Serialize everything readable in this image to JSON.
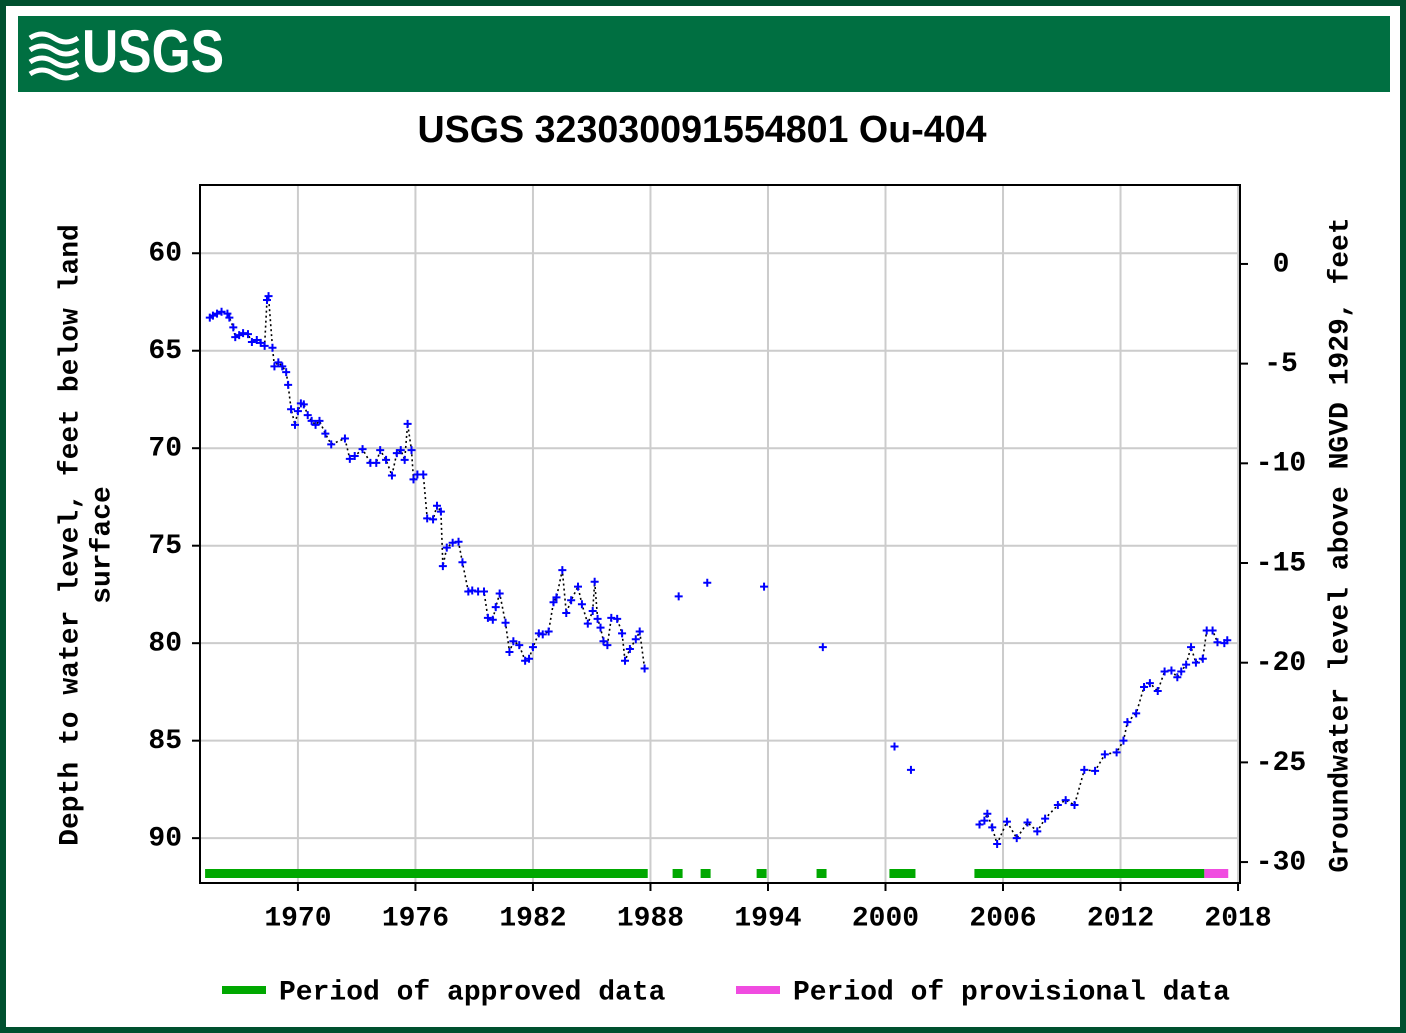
{
  "header": {
    "logo_text": "USGS"
  },
  "chart_data": {
    "type": "line",
    "title": "USGS 323030091554801 Ou-404",
    "ylabel_lines": [
      "Depth to water level, feet below land",
      "surface"
    ],
    "y2label": "Groundwater level above NGVD 1929, feet",
    "xlim": [
      1965.0,
      2018.1
    ],
    "xticks": [
      1970,
      1976,
      1982,
      1988,
      1994,
      2000,
      2006,
      2012,
      2018
    ],
    "ylim": [
      92.3,
      56.5
    ],
    "yticks": [
      60,
      65,
      70,
      75,
      80,
      85,
      90
    ],
    "y2lim": [
      -31.05,
      3.96
    ],
    "y2ticks": [
      0,
      -5,
      -10,
      -15,
      -20,
      -25,
      -30
    ],
    "grid": true,
    "marker_color": "#0000ff",
    "line_color": "#000000",
    "x": [
      1965.5,
      1965.66,
      1965.87,
      1966.1,
      1966.4,
      1966.5,
      1966.7,
      1966.8,
      1967.0,
      1967.2,
      1967.45,
      1967.65,
      1967.9,
      1968.1,
      1968.3,
      1968.42,
      1968.5,
      1968.7,
      1968.8,
      1969.0,
      1969.2,
      1969.4,
      1969.5,
      1969.65,
      1969.85,
      1970.0,
      1970.15,
      1970.3,
      1970.5,
      1970.7,
      1970.9,
      1971.1,
      1971.4,
      1971.7,
      1972.4,
      1972.65,
      1972.9,
      1973.3,
      1973.7,
      1974.0,
      1974.2,
      1974.5,
      1974.8,
      1975.05,
      1975.25,
      1975.45,
      1975.6,
      1975.8,
      1975.9,
      1976.1,
      1976.4,
      1976.6,
      1976.9,
      1977.1,
      1977.3,
      1977.4,
      1977.6,
      1977.9,
      1978.2,
      1978.4,
      1978.7,
      1978.9,
      1979.2,
      1979.5,
      1979.7,
      1979.95,
      1980.1,
      1980.3,
      1980.6,
      1980.8,
      1981.0,
      1981.3,
      1981.6,
      1981.8,
      1982.0,
      1982.3,
      1982.5,
      1982.8,
      1983.05,
      1983.2,
      1983.5,
      1983.7,
      1983.95,
      1984.3,
      1984.5,
      1984.8,
      1985.05,
      1985.15,
      1985.3,
      1985.45,
      1985.6,
      1985.8,
      1986.0,
      1986.3,
      1986.55,
      1986.7,
      1986.95,
      1987.25,
      1987.45,
      1987.7,
      null,
      1989.44,
      null,
      1990.9,
      null,
      1993.8,
      null,
      1996.8,
      null,
      2000.46,
      null,
      2001.3,
      null,
      2004.8,
      2005.05,
      2005.2,
      2005.45,
      2005.7,
      2006.2,
      2006.7,
      2007.25,
      2007.75,
      2008.15,
      2008.8,
      2009.2,
      2009.65,
      2010.15,
      2010.7,
      2011.2,
      2011.8,
      2012.15,
      2012.35,
      2012.8,
      2013.2,
      2013.5,
      2013.9,
      2014.25,
      2014.6,
      2014.9,
      2015.1,
      2015.35,
      2015.6,
      2015.85,
      2016.2,
      2016.4,
      2016.7,
      2016.95,
      2017.3,
      2017.45
    ],
    "values": [
      63.3,
      63.2,
      63.1,
      63.0,
      63.1,
      63.3,
      63.8,
      64.3,
      64.2,
      64.1,
      64.15,
      64.55,
      64.45,
      64.6,
      64.75,
      62.4,
      62.2,
      64.85,
      65.8,
      65.6,
      65.8,
      66.1,
      66.75,
      68.0,
      68.8,
      68.1,
      67.7,
      67.75,
      68.3,
      68.6,
      68.8,
      68.6,
      69.25,
      69.8,
      69.5,
      70.55,
      70.4,
      70.05,
      70.75,
      70.75,
      70.1,
      70.6,
      71.4,
      70.25,
      70.1,
      70.6,
      68.75,
      70.1,
      71.6,
      71.35,
      71.35,
      73.6,
      73.65,
      72.95,
      73.25,
      76.05,
      75.1,
      74.85,
      74.8,
      75.85,
      77.35,
      77.3,
      77.35,
      77.35,
      78.7,
      78.8,
      78.15,
      77.45,
      78.95,
      80.45,
      79.9,
      80.1,
      80.9,
      80.8,
      80.2,
      79.5,
      79.55,
      79.4,
      77.9,
      77.65,
      76.25,
      78.45,
      77.8,
      77.1,
      78.0,
      79.0,
      78.35,
      76.85,
      78.75,
      79.2,
      79.9,
      80.1,
      78.7,
      78.75,
      79.5,
      80.9,
      80.3,
      79.8,
      79.4,
      81.3,
      null,
      77.6,
      null,
      76.9,
      null,
      77.1,
      null,
      80.2,
      null,
      85.3,
      null,
      86.5,
      null,
      89.3,
      89.1,
      88.75,
      89.45,
      90.3,
      89.15,
      90.0,
      89.2,
      89.65,
      89.0,
      88.3,
      88.05,
      88.3,
      86.5,
      86.55,
      85.7,
      85.6,
      85.0,
      84.05,
      83.6,
      82.25,
      82.05,
      82.45,
      81.45,
      81.4,
      81.75,
      81.45,
      81.1,
      80.2,
      81.0,
      80.8,
      79.35,
      79.35,
      79.95,
      80.0,
      79.85
    ],
    "periods": [
      {
        "name": "Period of approved data",
        "color": "#00a800",
        "spans": [
          [
            1965.26,
            1987.86
          ],
          [
            1989.13,
            1989.64
          ],
          [
            1990.56,
            1991.07
          ],
          [
            1993.42,
            1993.93
          ],
          [
            1996.48,
            1996.99
          ],
          [
            2000.2,
            2001.53
          ],
          [
            2004.54,
            2016.28
          ]
        ]
      },
      {
        "name": "Period of provisional data",
        "color": "#f04ce0",
        "spans": [
          [
            2016.28,
            2017.5
          ]
        ]
      }
    ]
  }
}
